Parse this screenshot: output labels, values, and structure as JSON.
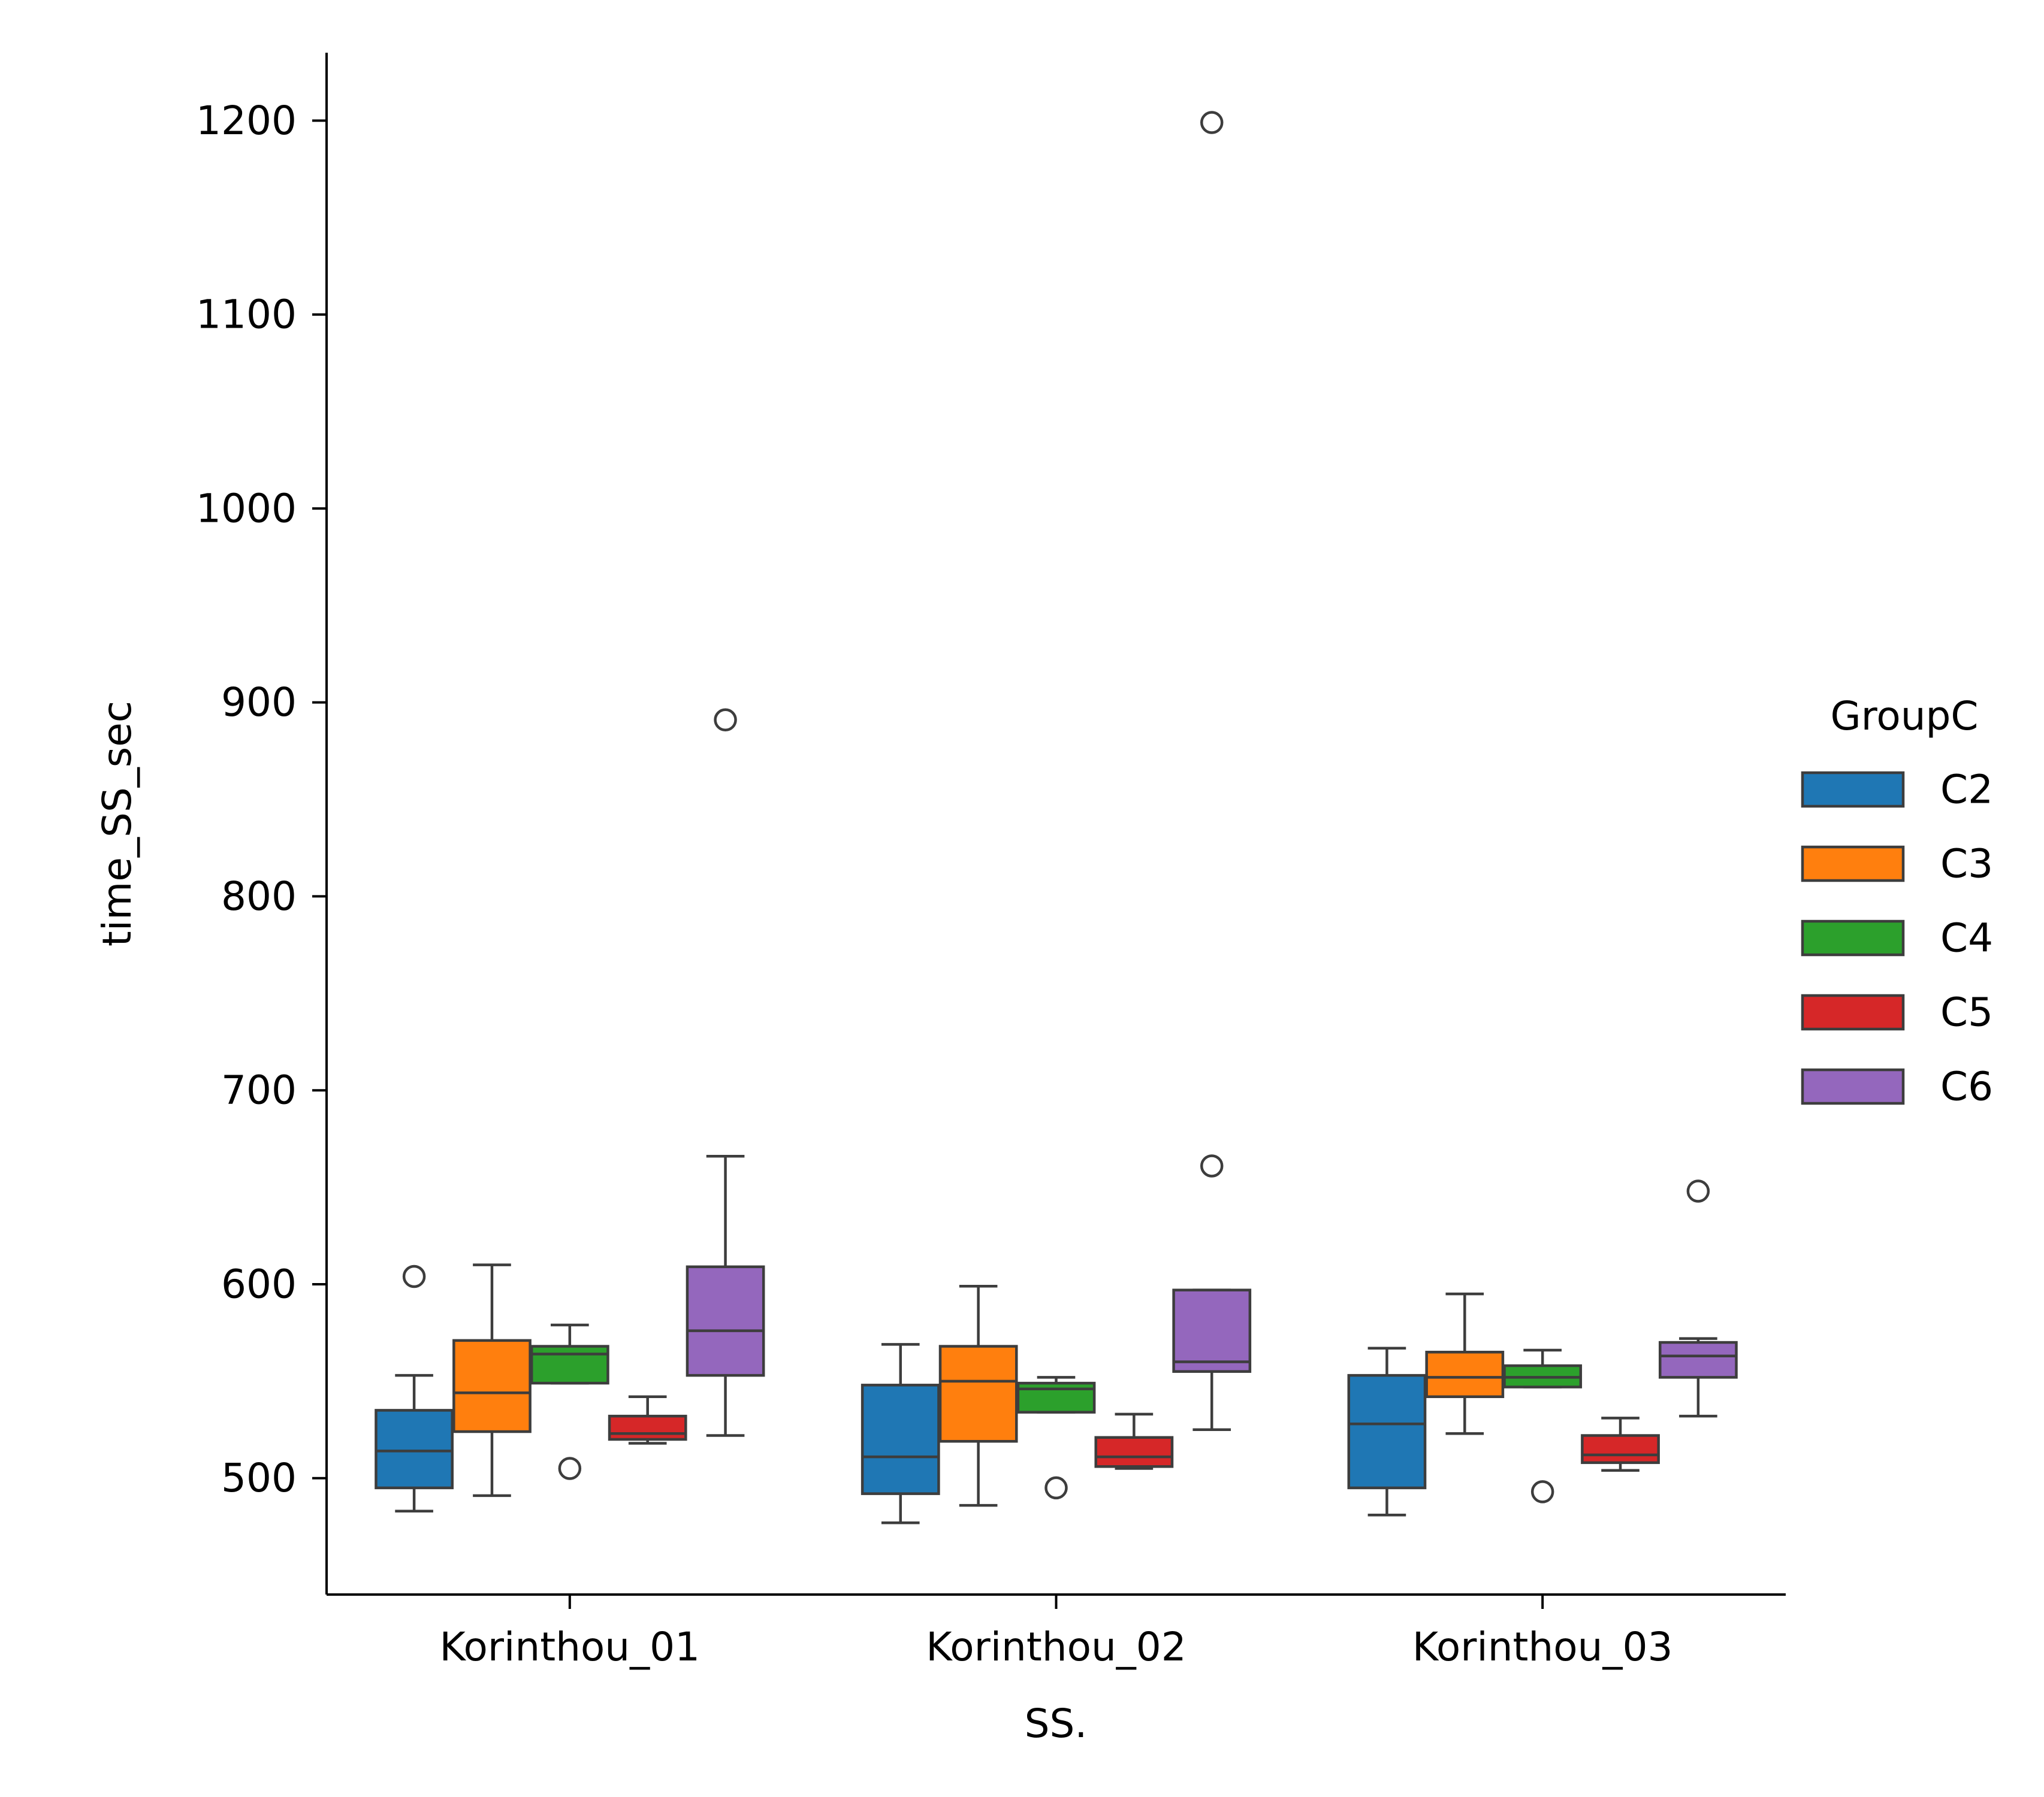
{
  "chart_data": {
    "type": "boxplot",
    "title": "",
    "xlabel": "SS.",
    "ylabel": "time_SS_sec",
    "categories": [
      "Korinthou_01",
      "Korinthou_02",
      "Korinthou_03"
    ],
    "yticks": [
      500,
      600,
      700,
      800,
      900,
      1000,
      1100,
      1200
    ],
    "ylim": [
      440,
      1235
    ],
    "grid": false,
    "legend": {
      "title": "GroupC",
      "placement": "center-right"
    },
    "series": [
      {
        "name": "C2",
        "color": "#1f77b4",
        "boxes": [
          {
            "whislo": 483,
            "q1": 495,
            "med": 514,
            "q3": 535,
            "whishi": 553,
            "fliers": [
              604
            ]
          },
          {
            "whislo": 477,
            "q1": 492,
            "med": 511,
            "q3": 548,
            "whishi": 569,
            "fliers": []
          },
          {
            "whislo": 481,
            "q1": 495,
            "med": 528,
            "q3": 553,
            "whishi": 567,
            "fliers": []
          }
        ]
      },
      {
        "name": "C3",
        "color": "#ff7f0e",
        "boxes": [
          {
            "whislo": 491,
            "q1": 524,
            "med": 544,
            "q3": 571,
            "whishi": 610,
            "fliers": []
          },
          {
            "whislo": 486,
            "q1": 519,
            "med": 550,
            "q3": 568,
            "whishi": 599,
            "fliers": []
          },
          {
            "whislo": 523,
            "q1": 542,
            "med": 552,
            "q3": 565,
            "whishi": 595,
            "fliers": []
          }
        ]
      },
      {
        "name": "C4",
        "color": "#2ca02c",
        "boxes": [
          {
            "whislo": 549,
            "q1": 549,
            "med": 564,
            "q3": 568,
            "whishi": 579,
            "fliers": [
              505
            ]
          },
          {
            "whislo": 534,
            "q1": 534,
            "med": 546,
            "q3": 549,
            "whishi": 552,
            "fliers": [
              495
            ]
          },
          {
            "whislo": 547,
            "q1": 547,
            "med": 552,
            "q3": 558,
            "whishi": 566,
            "fliers": [
              493
            ]
          }
        ]
      },
      {
        "name": "C5",
        "color": "#d62728",
        "boxes": [
          {
            "whislo": 518,
            "q1": 520,
            "med": 523,
            "q3": 532,
            "whishi": 542,
            "fliers": []
          },
          {
            "whislo": 505,
            "q1": 506,
            "med": 511,
            "q3": 521,
            "whishi": 533,
            "fliers": []
          },
          {
            "whislo": 504,
            "q1": 508,
            "med": 512,
            "q3": 522,
            "whishi": 531,
            "fliers": []
          }
        ]
      },
      {
        "name": "C6",
        "color": "#9467bd",
        "boxes": [
          {
            "whislo": 522,
            "q1": 553,
            "med": 576,
            "q3": 609,
            "whishi": 666,
            "fliers": [
              891
            ]
          },
          {
            "whislo": 525,
            "q1": 555,
            "med": 560,
            "q3": 597,
            "whishi": 597,
            "fliers": [
              1199,
              661
            ]
          },
          {
            "whislo": 532,
            "q1": 552,
            "med": 563,
            "q3": 570,
            "whishi": 572,
            "fliers": [
              648
            ]
          }
        ]
      }
    ]
  }
}
